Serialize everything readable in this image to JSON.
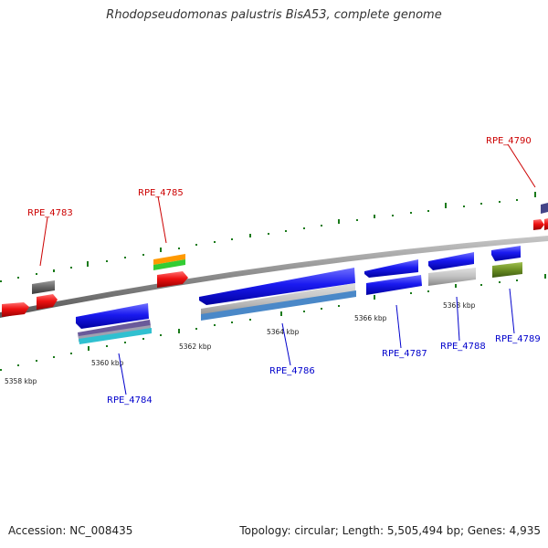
{
  "title": "Rhodopseudomonas palustris BisA53, complete genome",
  "footer": {
    "accession": "Accession: NC_008435",
    "topology": "Topology: circular; Length: 5,505,494 bp; Genes: 4,935"
  },
  "ticks": [
    "5358 kbp",
    "5360 kbp",
    "5362 kbp",
    "5364 kbp",
    "5366 kbp",
    "5368 kbp"
  ],
  "genes": {
    "forward": [
      "RPE_4783",
      "RPE_4785",
      "RPE_4790"
    ],
    "reverse": [
      "RPE_4784",
      "RPE_4786",
      "RPE_4787",
      "RPE_4788",
      "RPE_4789"
    ]
  },
  "colors": {
    "forward_label": "#cc0000",
    "reverse_label": "#0000cc",
    "backbone": "#888888",
    "tick_mark": "#1a7a1a",
    "forward_cds": "#ee1111",
    "reverse_cds": "#1111ee"
  }
}
